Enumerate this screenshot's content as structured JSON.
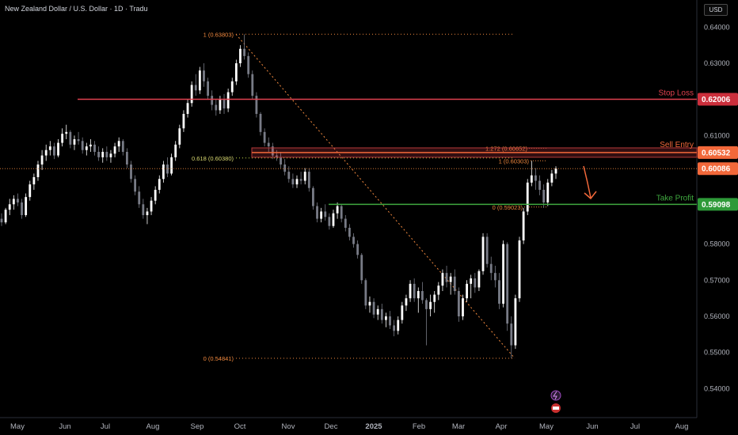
{
  "header": {
    "title": "New Zealand Dollar / U.S. Dollar · 1D · Tradu",
    "currency": "USD"
  },
  "chart_data": {
    "type": "candlestick",
    "ylim": [
      0.532,
      0.6475
    ],
    "y_ticks": [
      "0.64000",
      "0.63000",
      "0.62000",
      "0.61000",
      "0.60000",
      "0.59000",
      "0.58000",
      "0.57000",
      "0.56000",
      "0.55000",
      "0.54000"
    ],
    "x_ticks": [
      "May",
      "Jun",
      "Jul",
      "Aug",
      "Sep",
      "Oct",
      "Nov",
      "Dec",
      "2025",
      "Feb",
      "Mar",
      "Apr",
      "May",
      "Jun",
      "Jul",
      "Aug"
    ],
    "current_price": "0.60086",
    "levels": [
      {
        "name": "Stop Loss",
        "value": 0.62006,
        "label": "Stop Loss",
        "tag": "0.62006",
        "color": "#e0414f"
      },
      {
        "name": "Sell Entry",
        "value": 0.60532,
        "label": "Sell Entry",
        "tag": "0.60532",
        "color": "#f2683a"
      },
      {
        "name": "Take Profit",
        "value": 0.59098,
        "label": "Take Profit",
        "tag": "0.59098",
        "color": "#3fa83f"
      }
    ],
    "fibonacci_left": [
      {
        "label": "1 (0.63803)",
        "value": 0.63803
      },
      {
        "label": "0.618 (0.60380)",
        "value": 0.6038
      },
      {
        "label": "0 (0.54841)",
        "value": 0.54841
      }
    ],
    "fibonacci_right": [
      {
        "label": "1.272 (0.60652)",
        "value": 0.60652
      },
      {
        "label": "1 (0.60303)",
        "value": 0.60303
      },
      {
        "label": "0 (0.59023)",
        "value": 0.59023
      }
    ],
    "candles": [
      [
        0.587,
        0.5885,
        0.585,
        0.586
      ],
      [
        0.586,
        0.59,
        0.5855,
        0.5895
      ],
      [
        0.5895,
        0.5925,
        0.588,
        0.591
      ],
      [
        0.591,
        0.5935,
        0.5895,
        0.5925
      ],
      [
        0.5925,
        0.594,
        0.5905,
        0.5915
      ],
      [
        0.5915,
        0.5925,
        0.587,
        0.588
      ],
      [
        0.588,
        0.594,
        0.5875,
        0.593
      ],
      [
        0.593,
        0.5975,
        0.592,
        0.5965
      ],
      [
        0.5965,
        0.5995,
        0.595,
        0.5985
      ],
      [
        0.5985,
        0.603,
        0.5975,
        0.602
      ],
      [
        0.602,
        0.606,
        0.6005,
        0.6045
      ],
      [
        0.6045,
        0.6075,
        0.603,
        0.606
      ],
      [
        0.606,
        0.6085,
        0.6045,
        0.607
      ],
      [
        0.607,
        0.608,
        0.6035,
        0.6045
      ],
      [
        0.6045,
        0.609,
        0.604,
        0.608
      ],
      [
        0.608,
        0.612,
        0.607,
        0.6105
      ],
      [
        0.6105,
        0.613,
        0.609,
        0.611
      ],
      [
        0.611,
        0.6115,
        0.6065,
        0.6075
      ],
      [
        0.6075,
        0.61,
        0.606,
        0.609
      ],
      [
        0.609,
        0.611,
        0.6075,
        0.6085
      ],
      [
        0.6085,
        0.6095,
        0.605,
        0.606
      ],
      [
        0.606,
        0.608,
        0.6045,
        0.607
      ],
      [
        0.607,
        0.609,
        0.6055,
        0.6075
      ],
      [
        0.6075,
        0.6085,
        0.6045,
        0.6055
      ],
      [
        0.6055,
        0.607,
        0.603,
        0.604
      ],
      [
        0.604,
        0.6065,
        0.6025,
        0.6055
      ],
      [
        0.6055,
        0.607,
        0.603,
        0.604
      ],
      [
        0.604,
        0.606,
        0.6025,
        0.605
      ],
      [
        0.605,
        0.608,
        0.604,
        0.607
      ],
      [
        0.607,
        0.6095,
        0.6055,
        0.6085
      ],
      [
        0.6085,
        0.609,
        0.6045,
        0.6055
      ],
      [
        0.6055,
        0.6065,
        0.601,
        0.602
      ],
      [
        0.602,
        0.603,
        0.597,
        0.598
      ],
      [
        0.598,
        0.599,
        0.5935,
        0.5945
      ],
      [
        0.5945,
        0.596,
        0.59,
        0.591
      ],
      [
        0.591,
        0.5925,
        0.587,
        0.588
      ],
      [
        0.588,
        0.59,
        0.5855,
        0.589
      ],
      [
        0.589,
        0.593,
        0.588,
        0.592
      ],
      [
        0.592,
        0.596,
        0.591,
        0.595
      ],
      [
        0.595,
        0.599,
        0.594,
        0.598
      ],
      [
        0.598,
        0.603,
        0.597,
        0.602
      ],
      [
        0.602,
        0.604,
        0.5985,
        0.5995
      ],
      [
        0.5995,
        0.605,
        0.599,
        0.604
      ],
      [
        0.604,
        0.6085,
        0.603,
        0.6075
      ],
      [
        0.6075,
        0.613,
        0.6065,
        0.612
      ],
      [
        0.612,
        0.617,
        0.611,
        0.616
      ],
      [
        0.616,
        0.62,
        0.615,
        0.619
      ],
      [
        0.619,
        0.625,
        0.618,
        0.624
      ],
      [
        0.624,
        0.627,
        0.621,
        0.6225
      ],
      [
        0.6225,
        0.629,
        0.6215,
        0.628
      ],
      [
        0.628,
        0.63,
        0.6235,
        0.625
      ],
      [
        0.625,
        0.626,
        0.62,
        0.621
      ],
      [
        0.621,
        0.6225,
        0.617,
        0.6185
      ],
      [
        0.6185,
        0.62,
        0.6155,
        0.617
      ],
      [
        0.617,
        0.621,
        0.616,
        0.62
      ],
      [
        0.62,
        0.6215,
        0.616,
        0.6175
      ],
      [
        0.6175,
        0.623,
        0.6165,
        0.622
      ],
      [
        0.622,
        0.626,
        0.621,
        0.625
      ],
      [
        0.625,
        0.631,
        0.624,
        0.63
      ],
      [
        0.63,
        0.635,
        0.629,
        0.634
      ],
      [
        0.634,
        0.638,
        0.631,
        0.632
      ],
      [
        0.632,
        0.633,
        0.626,
        0.627
      ],
      [
        0.627,
        0.628,
        0.62,
        0.621
      ],
      [
        0.621,
        0.622,
        0.615,
        0.616
      ],
      [
        0.616,
        0.6165,
        0.61,
        0.611
      ],
      [
        0.611,
        0.612,
        0.607,
        0.608
      ],
      [
        0.608,
        0.6095,
        0.6055,
        0.607
      ],
      [
        0.607,
        0.608,
        0.6035,
        0.6045
      ],
      [
        0.6045,
        0.606,
        0.603,
        0.604
      ],
      [
        0.604,
        0.6055,
        0.601,
        0.602
      ],
      [
        0.602,
        0.6035,
        0.599,
        0.6
      ],
      [
        0.6,
        0.6015,
        0.597,
        0.598
      ],
      [
        0.598,
        0.5995,
        0.5955,
        0.5965
      ],
      [
        0.5965,
        0.599,
        0.5955,
        0.598
      ],
      [
        0.598,
        0.6,
        0.5965,
        0.5975
      ],
      [
        0.5975,
        0.601,
        0.5965,
        0.6
      ],
      [
        0.6,
        0.601,
        0.5945,
        0.5955
      ],
      [
        0.5955,
        0.596,
        0.5895,
        0.5905
      ],
      [
        0.5905,
        0.5915,
        0.586,
        0.587
      ],
      [
        0.587,
        0.59,
        0.586,
        0.589
      ],
      [
        0.589,
        0.591,
        0.5865,
        0.5875
      ],
      [
        0.5875,
        0.5885,
        0.584,
        0.585
      ],
      [
        0.585,
        0.5895,
        0.5845,
        0.5885
      ],
      [
        0.5885,
        0.5915,
        0.587,
        0.5905
      ],
      [
        0.5905,
        0.591,
        0.586,
        0.587
      ],
      [
        0.587,
        0.588,
        0.5835,
        0.5845
      ],
      [
        0.5845,
        0.5855,
        0.581,
        0.582
      ],
      [
        0.582,
        0.583,
        0.579,
        0.58
      ],
      [
        0.58,
        0.581,
        0.576,
        0.577
      ],
      [
        0.577,
        0.5775,
        0.569,
        0.57
      ],
      [
        0.57,
        0.5705,
        0.562,
        0.563
      ],
      [
        0.563,
        0.5655,
        0.561,
        0.564
      ],
      [
        0.564,
        0.565,
        0.5595,
        0.5605
      ],
      [
        0.5605,
        0.563,
        0.559,
        0.562
      ],
      [
        0.562,
        0.5635,
        0.558,
        0.559
      ],
      [
        0.559,
        0.561,
        0.557,
        0.56
      ],
      [
        0.56,
        0.5615,
        0.5565,
        0.5575
      ],
      [
        0.5575,
        0.559,
        0.5545,
        0.556
      ],
      [
        0.556,
        0.56,
        0.555,
        0.559
      ],
      [
        0.559,
        0.564,
        0.558,
        0.563
      ],
      [
        0.563,
        0.566,
        0.5615,
        0.565
      ],
      [
        0.565,
        0.57,
        0.564,
        0.569
      ],
      [
        0.569,
        0.5705,
        0.564,
        0.565
      ],
      [
        0.565,
        0.568,
        0.561,
        0.567
      ],
      [
        0.567,
        0.5695,
        0.5635,
        0.5645
      ],
      [
        0.5645,
        0.565,
        0.552,
        0.562
      ],
      [
        0.562,
        0.566,
        0.56,
        0.564
      ],
      [
        0.564,
        0.567,
        0.561,
        0.566
      ],
      [
        0.566,
        0.5695,
        0.5645,
        0.5685
      ],
      [
        0.5685,
        0.573,
        0.567,
        0.572
      ],
      [
        0.572,
        0.574,
        0.568,
        0.5695
      ],
      [
        0.5695,
        0.572,
        0.566,
        0.571
      ],
      [
        0.571,
        0.573,
        0.566,
        0.567
      ],
      [
        0.567,
        0.568,
        0.5585,
        0.56
      ],
      [
        0.56,
        0.566,
        0.559,
        0.565
      ],
      [
        0.565,
        0.57,
        0.564,
        0.569
      ],
      [
        0.569,
        0.5715,
        0.565,
        0.5705
      ],
      [
        0.5705,
        0.572,
        0.5665,
        0.568
      ],
      [
        0.568,
        0.573,
        0.567,
        0.5725
      ],
      [
        0.5725,
        0.583,
        0.5715,
        0.582
      ],
      [
        0.582,
        0.583,
        0.5735,
        0.5745
      ],
      [
        0.5745,
        0.5765,
        0.57,
        0.572
      ],
      [
        0.572,
        0.574,
        0.568,
        0.57
      ],
      [
        0.57,
        0.572,
        0.562,
        0.5635
      ],
      [
        0.5635,
        0.581,
        0.5625,
        0.58
      ],
      [
        0.58,
        0.5805,
        0.556,
        0.558
      ],
      [
        0.558,
        0.56,
        0.5484,
        0.552
      ],
      [
        0.552,
        0.566,
        0.551,
        0.565
      ],
      [
        0.565,
        0.582,
        0.564,
        0.581
      ],
      [
        0.581,
        0.59,
        0.58,
        0.589
      ],
      [
        0.589,
        0.598,
        0.588,
        0.597
      ],
      [
        0.597,
        0.603,
        0.596,
        0.599
      ],
      [
        0.599,
        0.601,
        0.595,
        0.5975
      ],
      [
        0.5975,
        0.599,
        0.5935,
        0.595
      ],
      [
        0.595,
        0.5965,
        0.59,
        0.5915
      ],
      [
        0.5915,
        0.598,
        0.5905,
        0.597
      ],
      [
        0.597,
        0.6005,
        0.596,
        0.5995
      ],
      [
        0.5995,
        0.6015,
        0.598,
        0.6009
      ]
    ]
  }
}
